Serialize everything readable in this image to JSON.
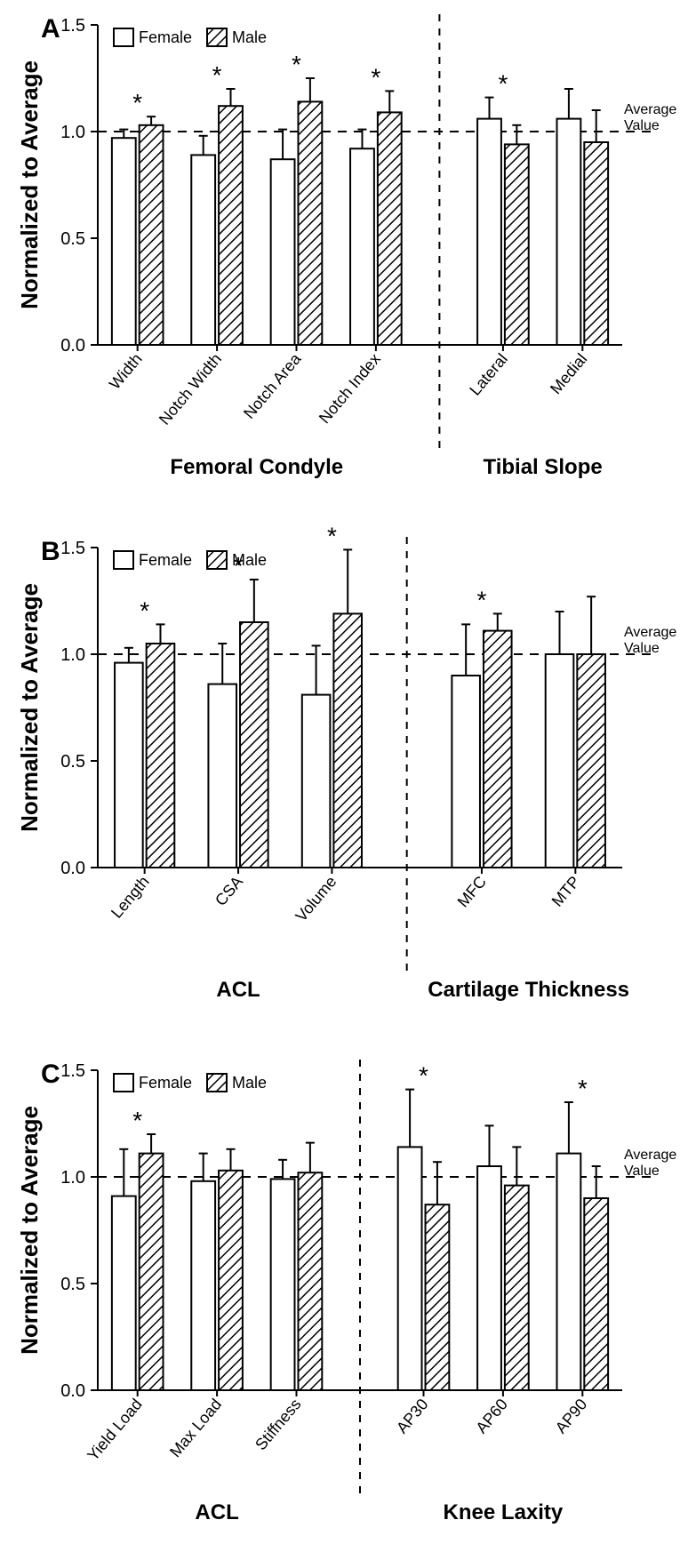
{
  "global": {
    "yaxis_label": "Normalized to Average",
    "ylim": [
      0.0,
      1.5
    ],
    "yticks": [
      0.0,
      0.5,
      1.0,
      1.5
    ],
    "avg_line_value": 1.0,
    "avg_line_label": "Average\nValue",
    "legend": {
      "female": "Female",
      "male": "Male"
    },
    "colors": {
      "female_fill": "#ffffff",
      "male_fill": "#ffffff",
      "hatch": "#000000",
      "bar_stroke": "#000000",
      "axis": "#000000",
      "avg_line": "#000000",
      "divider": "#000000"
    },
    "bar_stroke_width": 2,
    "axis_stroke_width": 2,
    "error_cap_width": 10
  },
  "panels": [
    {
      "letter": "A",
      "left": {
        "section_label": "Femoral  Condyle",
        "groups": [
          {
            "label": "Width",
            "female": {
              "v": 0.97,
              "err": 0.04
            },
            "male": {
              "v": 1.03,
              "err": 0.04
            },
            "sig": true
          },
          {
            "label": "Notch Width",
            "female": {
              "v": 0.89,
              "err": 0.09
            },
            "male": {
              "v": 1.12,
              "err": 0.08
            },
            "sig": true
          },
          {
            "label": "Notch Area",
            "female": {
              "v": 0.87,
              "err": 0.14
            },
            "male": {
              "v": 1.14,
              "err": 0.11
            },
            "sig": true
          },
          {
            "label": "Notch Index",
            "female": {
              "v": 0.92,
              "err": 0.09
            },
            "male": {
              "v": 1.09,
              "err": 0.1
            },
            "sig": true
          }
        ]
      },
      "right": {
        "section_label": "Tibial Slope",
        "groups": [
          {
            "label": "Lateral",
            "female": {
              "v": 1.06,
              "err": 0.1
            },
            "male": {
              "v": 0.94,
              "err": 0.09
            },
            "sig": true
          },
          {
            "label": "Medial",
            "female": {
              "v": 1.06,
              "err": 0.14
            },
            "male": {
              "v": 0.95,
              "err": 0.15
            },
            "sig": false
          }
        ]
      }
    },
    {
      "letter": "B",
      "left": {
        "section_label": "ACL",
        "groups": [
          {
            "label": "Length",
            "female": {
              "v": 0.96,
              "err": 0.07
            },
            "male": {
              "v": 1.05,
              "err": 0.09
            },
            "sig": true
          },
          {
            "label": "CSA",
            "female": {
              "v": 0.86,
              "err": 0.19
            },
            "male": {
              "v": 1.15,
              "err": 0.2
            },
            "sig": true
          },
          {
            "label": "Volume",
            "female": {
              "v": 0.81,
              "err": 0.23
            },
            "male": {
              "v": 1.19,
              "err": 0.3
            },
            "sig": true
          }
        ]
      },
      "right": {
        "section_label": "Cartilage  Thickness",
        "groups": [
          {
            "label": "MFC",
            "female": {
              "v": 0.9,
              "err": 0.24
            },
            "male": {
              "v": 1.11,
              "err": 0.08
            },
            "sig": true
          },
          {
            "label": "MTP",
            "female": {
              "v": 1.0,
              "err": 0.2
            },
            "male": {
              "v": 1.0,
              "err": 0.27
            },
            "sig": false
          }
        ]
      }
    },
    {
      "letter": "C",
      "left": {
        "section_label": "ACL",
        "groups": [
          {
            "label": "Yield Load",
            "female": {
              "v": 0.91,
              "err": 0.22
            },
            "male": {
              "v": 1.11,
              "err": 0.09
            },
            "sig": true
          },
          {
            "label": "Max Load",
            "female": {
              "v": 0.98,
              "err": 0.13
            },
            "male": {
              "v": 1.03,
              "err": 0.1
            },
            "sig": false
          },
          {
            "label": "Stiffness",
            "female": {
              "v": 0.99,
              "err": 0.09
            },
            "male": {
              "v": 1.02,
              "err": 0.14
            },
            "sig": false
          }
        ]
      },
      "right": {
        "section_label": "Knee  Laxity",
        "groups": [
          {
            "label": "AP30",
            "female": {
              "v": 1.14,
              "err": 0.27
            },
            "male": {
              "v": 0.87,
              "err": 0.2
            },
            "sig": true
          },
          {
            "label": "AP60",
            "female": {
              "v": 1.05,
              "err": 0.19
            },
            "male": {
              "v": 0.96,
              "err": 0.18
            },
            "sig": false
          },
          {
            "label": "AP90",
            "female": {
              "v": 1.11,
              "err": 0.24
            },
            "male": {
              "v": 0.9,
              "err": 0.15
            },
            "sig": true
          }
        ]
      }
    }
  ]
}
